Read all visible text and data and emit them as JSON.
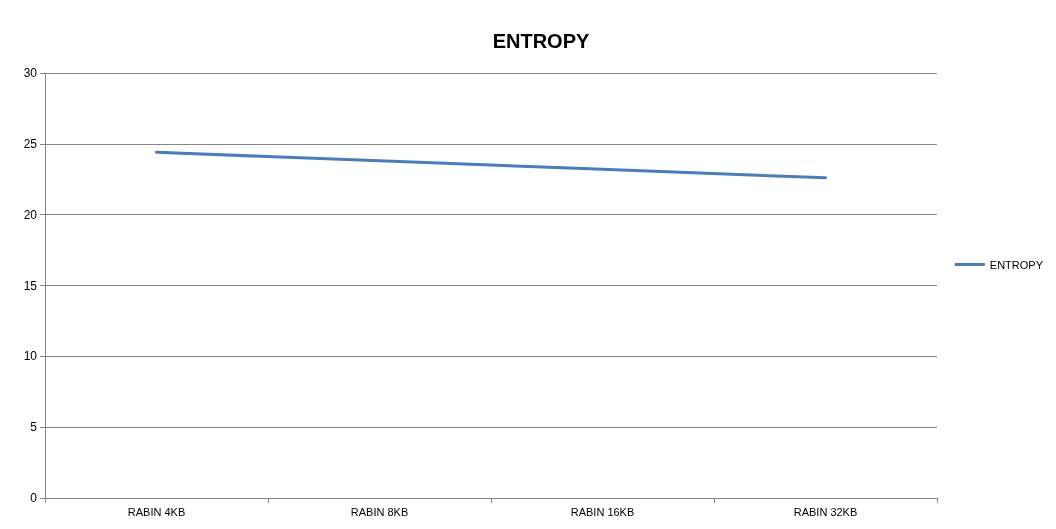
{
  "chart_data": {
    "type": "line",
    "title": "ENTROPY",
    "categories": [
      "RABIN 4KB",
      "RABIN 8KB",
      "RABIN 16KB",
      "RABIN 32KB"
    ],
    "series": [
      {
        "name": "ENTROPY",
        "color": "#4a7ebb",
        "values": [
          24.4,
          23.8,
          23.2,
          22.6
        ]
      }
    ],
    "ylim": [
      0,
      30
    ],
    "yticks": [
      0,
      5,
      10,
      15,
      20,
      25,
      30
    ],
    "grid": "y",
    "legend": "right",
    "marker": "none",
    "line_style": "solid"
  }
}
